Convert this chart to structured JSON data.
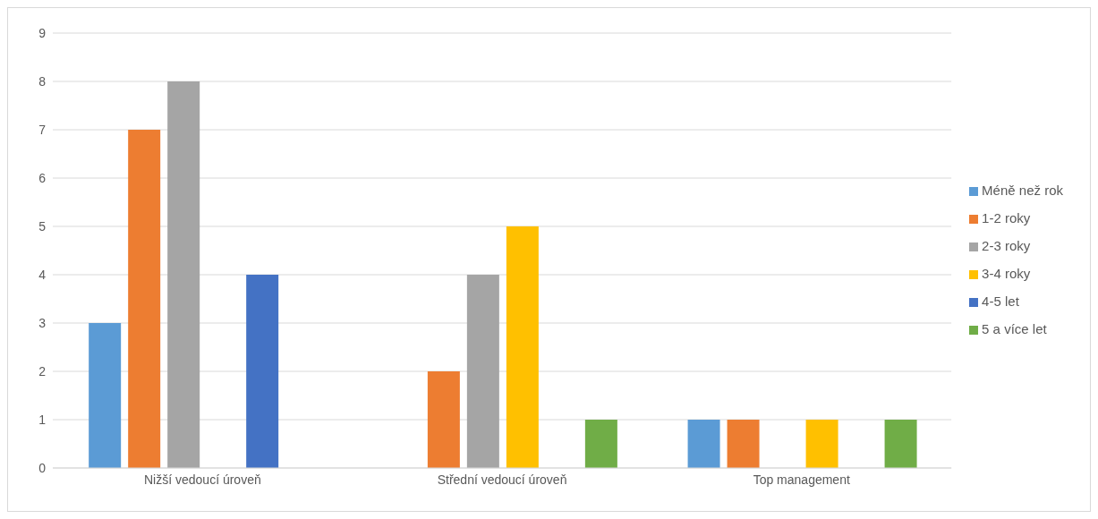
{
  "chart_data": {
    "type": "bar",
    "categories": [
      "Nižší vedoucí úroveň",
      "Střední vedoucí úroveň",
      "Top management"
    ],
    "series": [
      {
        "name": "Méně než rok",
        "color": "#5b9bd5",
        "values": [
          3,
          0,
          1
        ]
      },
      {
        "name": "1-2 roky",
        "color": "#ed7d31",
        "values": [
          7,
          2,
          1
        ]
      },
      {
        "name": "2-3 roky",
        "color": "#a5a5a5",
        "values": [
          8,
          4,
          0
        ]
      },
      {
        "name": "3-4 roky",
        "color": "#ffc000",
        "values": [
          0,
          5,
          1
        ]
      },
      {
        "name": "4-5 let",
        "color": "#4472c4",
        "values": [
          4,
          0,
          0
        ]
      },
      {
        "name": "5 a více let",
        "color": "#70ad47",
        "values": [
          0,
          1,
          1
        ]
      }
    ],
    "ylim": [
      0,
      9
    ],
    "yticks": [
      0,
      1,
      2,
      3,
      4,
      5,
      6,
      7,
      8,
      9
    ],
    "grid": "y",
    "legend": "right"
  }
}
